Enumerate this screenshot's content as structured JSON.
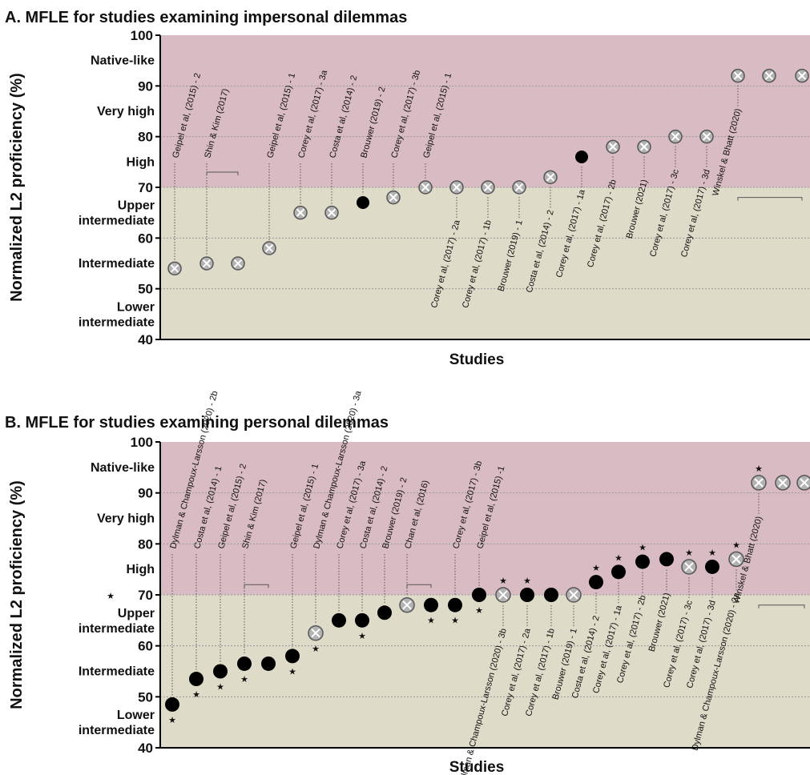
{
  "chart_data": [
    {
      "type": "scatter",
      "title": "A. MFLE for studies examining impersonal dilemmas",
      "ylabel": "Normalized L2 proficiency (%)",
      "xlabel": "Studies",
      "ylim": [
        40,
        100
      ],
      "yticks": [
        40,
        50,
        60,
        70,
        80,
        90,
        100
      ],
      "bands": [
        "Native-like",
        "Very high",
        "High",
        "Upper intermediate",
        "Intermediate",
        "Lower intermediate"
      ],
      "band_split": 70,
      "colors": {
        "upper_band": "#d9bcc3",
        "lower_band": "#dedbc8",
        "filled": "#000000",
        "crossed": "#b3b3b3"
      },
      "points": [
        {
          "label": "Geipel et al, (2015) - 2",
          "y": 54,
          "marker": "crossed"
        },
        {
          "label": "Shin & Kim (2017)",
          "y": 55,
          "marker": "crossed"
        },
        {
          "label": "",
          "y": 55,
          "marker": "crossed"
        },
        {
          "label": "Geipel et al, (2015) - 1",
          "y": 58,
          "marker": "crossed"
        },
        {
          "label": "Corey et al, (2017) - 3a",
          "y": 65,
          "marker": "crossed"
        },
        {
          "label": "Costa et al, (2014) - 2",
          "y": 65,
          "marker": "crossed"
        },
        {
          "label": "Brouwer (2019) - 2",
          "y": 67,
          "marker": "filled"
        },
        {
          "label": "Corey et al, (2017) - 3b",
          "y": 68,
          "marker": "crossed"
        },
        {
          "label": "Geipel et al, (2015) - 1",
          "y": 70,
          "marker": "crossed"
        },
        {
          "label": "Corey et al, (2017) - 2a",
          "y": 70,
          "marker": "crossed"
        },
        {
          "label": "Corey et al, (2017) - 1b",
          "y": 70,
          "marker": "crossed"
        },
        {
          "label": "Brouwer (2019) - 1",
          "y": 70,
          "marker": "crossed"
        },
        {
          "label": "Costa et al, (2014) - 2",
          "y": 72,
          "marker": "crossed"
        },
        {
          "label": "Corey et al, (2017) - 1a",
          "y": 76,
          "marker": "filled"
        },
        {
          "label": "Corey et al, (2017) - 2b",
          "y": 78,
          "marker": "crossed"
        },
        {
          "label": "Brouwer (2021)",
          "y": 78,
          "marker": "crossed"
        },
        {
          "label": "Corey et al, (2017) - 3c",
          "y": 80,
          "marker": "crossed"
        },
        {
          "label": "Corey et al, (2017) - 3d",
          "y": 80,
          "marker": "crossed"
        },
        {
          "label": "Winskel & Bhatt (2020)",
          "y": 92,
          "marker": "crossed"
        },
        {
          "label": "",
          "y": 92,
          "marker": "crossed"
        },
        {
          "label": "",
          "y": 92,
          "marker": "crossed"
        }
      ]
    },
    {
      "type": "scatter",
      "title": "B. MFLE for studies examining personal dilemmas",
      "ylabel": "Normalized L2 proficiency (%)",
      "xlabel": "Studies",
      "ylim": [
        40,
        100
      ],
      "yticks": [
        40,
        50,
        60,
        70,
        80,
        90,
        100
      ],
      "bands": [
        "Native-like",
        "Very high",
        "High",
        "Upper intermediate",
        "Intermediate",
        "Lower intermediate"
      ],
      "band_split": 70,
      "colors": {
        "upper_band": "#d9bcc3",
        "lower_band": "#dedbc8",
        "filled": "#000000",
        "crossed": "#b3b3b3"
      },
      "significance_marker": "★",
      "points": [
        {
          "label": "Dylman & Champoux-Larsson (2020) - 2b",
          "y": 48.5,
          "marker": "filled",
          "star": "below"
        },
        {
          "label": "Costa et al, (2014) - 1",
          "y": 53.5,
          "marker": "filled",
          "star": "below"
        },
        {
          "label": "Geipel et al, (2015) - 2",
          "y": 55,
          "marker": "filled",
          "star": "below"
        },
        {
          "label": "Shin & Kim (2017)",
          "y": 56.5,
          "marker": "filled",
          "star": "below"
        },
        {
          "label": "",
          "y": 56.5,
          "marker": "filled"
        },
        {
          "label": "Geipel et al, (2015) - 1",
          "y": 58,
          "marker": "filled",
          "star": "below"
        },
        {
          "label": "Dylman & Champoux-Larsson (2020) - 3a",
          "y": 62.5,
          "marker": "crossed",
          "star": "below"
        },
        {
          "label": "Corey et al, (2017) - 3a",
          "y": 65,
          "marker": "filled"
        },
        {
          "label": "Costa et al, (2014) - 2",
          "y": 65,
          "marker": "filled",
          "star": "below"
        },
        {
          "label": "Brouwer (2019) - 2",
          "y": 66.5,
          "marker": "filled"
        },
        {
          "label": "Chan et al, (2016)",
          "y": 68,
          "marker": "crossed"
        },
        {
          "label": "",
          "y": 68,
          "marker": "filled",
          "star": "below"
        },
        {
          "label": "Corey et al, (2017) - 3b",
          "y": 68,
          "marker": "filled",
          "star": "below"
        },
        {
          "label": "Geipel et al, (2015) -1",
          "y": 70,
          "marker": "filled",
          "star": "below"
        },
        {
          "label": "Dylman & Champoux-Larsson (2020) - 3b",
          "y": 70,
          "marker": "crossed",
          "star": "above"
        },
        {
          "label": "Corey et al, (2017) - 2a",
          "y": 70,
          "marker": "filled",
          "star": "above"
        },
        {
          "label": "Corey et al, (2017) - 1b",
          "y": 70,
          "marker": "filled"
        },
        {
          "label": "Brouwer (2019) - 1",
          "y": 70,
          "marker": "crossed"
        },
        {
          "label": "Costa et al, (2014) - 2",
          "y": 72.5,
          "marker": "filled",
          "star": "above"
        },
        {
          "label": "Corey et al, (2017) - 1a",
          "y": 74.5,
          "marker": "filled",
          "star": "above"
        },
        {
          "label": "Corey et al, (2017) - 2b",
          "y": 76.5,
          "marker": "filled",
          "star": "above"
        },
        {
          "label": "Brouwer (2021)",
          "y": 77,
          "marker": "filled"
        },
        {
          "label": "Corey et al, (2017) - 3c",
          "y": 75.5,
          "marker": "crossed",
          "star": "above"
        },
        {
          "label": "Corey et al, (2017) - 3d",
          "y": 75.5,
          "marker": "filled",
          "star": "above"
        },
        {
          "label": "Dylman & Champoux-Larsson (2020) - 2a",
          "y": 77,
          "marker": "crossed",
          "star": "above"
        },
        {
          "label": "Winskel & Bhatt (2020)",
          "y": 92,
          "marker": "crossed",
          "star": "above"
        },
        {
          "label": "",
          "y": 92,
          "marker": "crossed"
        },
        {
          "label": "",
          "y": 92,
          "marker": "crossed"
        }
      ],
      "legend_star": "★"
    }
  ]
}
